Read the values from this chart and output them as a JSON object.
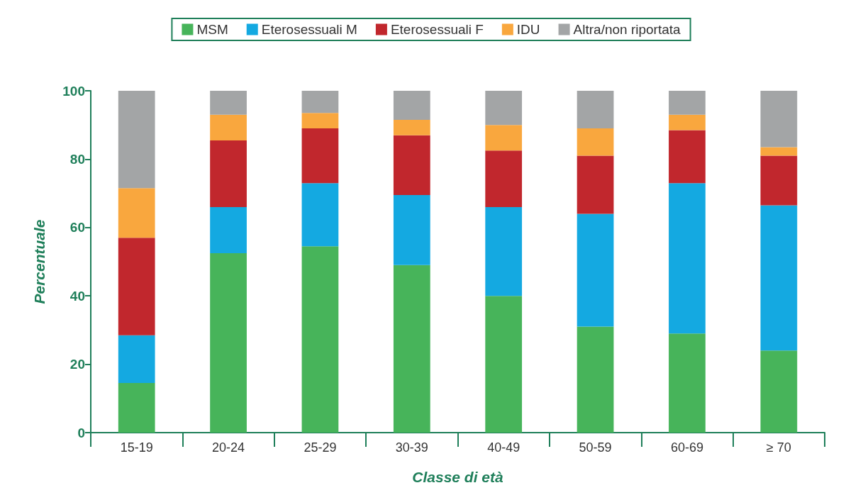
{
  "chart_data": {
    "type": "bar",
    "stacked": true,
    "xlabel": "Classe di età",
    "ylabel": "Percentuale",
    "categories": [
      "15-19",
      "20-24",
      "25-29",
      "30-39",
      "40-49",
      "50-59",
      "60-69",
      "≥ 70"
    ],
    "series": [
      {
        "name": "MSM",
        "color": "#47b45a",
        "values": [
          14.5,
          52.5,
          54.5,
          49,
          40,
          31,
          29,
          24
        ]
      },
      {
        "name": "Eterosessuali M",
        "color": "#14a9e1",
        "values": [
          14,
          13.5,
          18.5,
          20.5,
          26,
          33,
          44,
          42.5
        ]
      },
      {
        "name": "Eterosessuali F",
        "color": "#c1272d",
        "values": [
          28.5,
          19.5,
          16,
          17.5,
          16.5,
          17,
          15.5,
          14.5
        ]
      },
      {
        "name": "IDU",
        "color": "#f9a73e",
        "values": [
          14.5,
          7.5,
          4.5,
          4.5,
          7.5,
          8,
          4.5,
          2.5
        ]
      },
      {
        "name": "Altra/non riportata",
        "color": "#a3a5a6",
        "values": [
          28.5,
          7,
          6.5,
          8.5,
          10,
          11,
          7,
          16.5
        ]
      }
    ],
    "ylim": [
      0,
      100
    ],
    "yticks": [
      0,
      20,
      40,
      60,
      80,
      100
    ],
    "grid": false,
    "legend": "top"
  }
}
